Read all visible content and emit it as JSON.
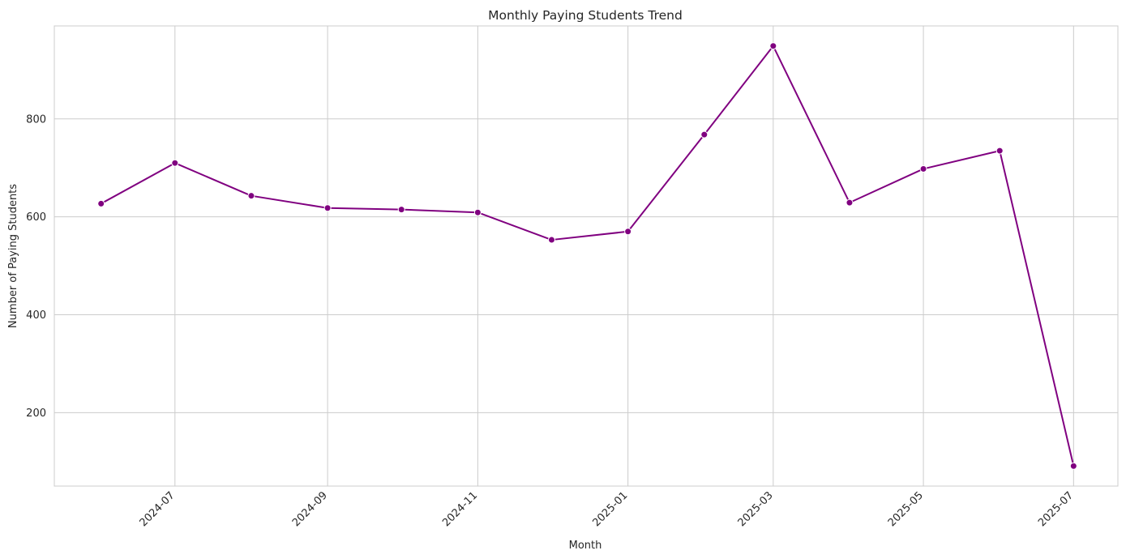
{
  "chart_data": {
    "type": "line",
    "title": "Monthly Paying Students Trend",
    "xlabel": "Month",
    "ylabel": "Number of Paying Students",
    "x_tick_labels": [
      "2024-07",
      "2024-09",
      "2024-11",
      "2025-01",
      "2025-03",
      "2025-05",
      "2025-07"
    ],
    "y_ticks": [
      200,
      400,
      600,
      800
    ],
    "grid": true,
    "legend": "none",
    "series": [
      {
        "color": "#800080",
        "points": [
          {
            "x": "2024-06",
            "y": 627
          },
          {
            "x": "2024-07",
            "y": 710
          },
          {
            "x": "2024-08",
            "y": 643
          },
          {
            "x": "2024-09",
            "y": 618
          },
          {
            "x": "2024-10",
            "y": 615
          },
          {
            "x": "2024-11",
            "y": 609
          },
          {
            "x": "2024-12",
            "y": 553
          },
          {
            "x": "2025-01",
            "y": 570
          },
          {
            "x": "2025-02",
            "y": 768
          },
          {
            "x": "2025-03",
            "y": 949
          },
          {
            "x": "2025-04",
            "y": 629
          },
          {
            "x": "2025-05",
            "y": 698
          },
          {
            "x": "2025-06",
            "y": 735
          },
          {
            "x": "2025-07",
            "y": 91
          }
        ]
      }
    ],
    "ylim": [
      50,
      990
    ],
    "xlim": [
      "2024-05-13",
      "2025-07-19"
    ]
  }
}
